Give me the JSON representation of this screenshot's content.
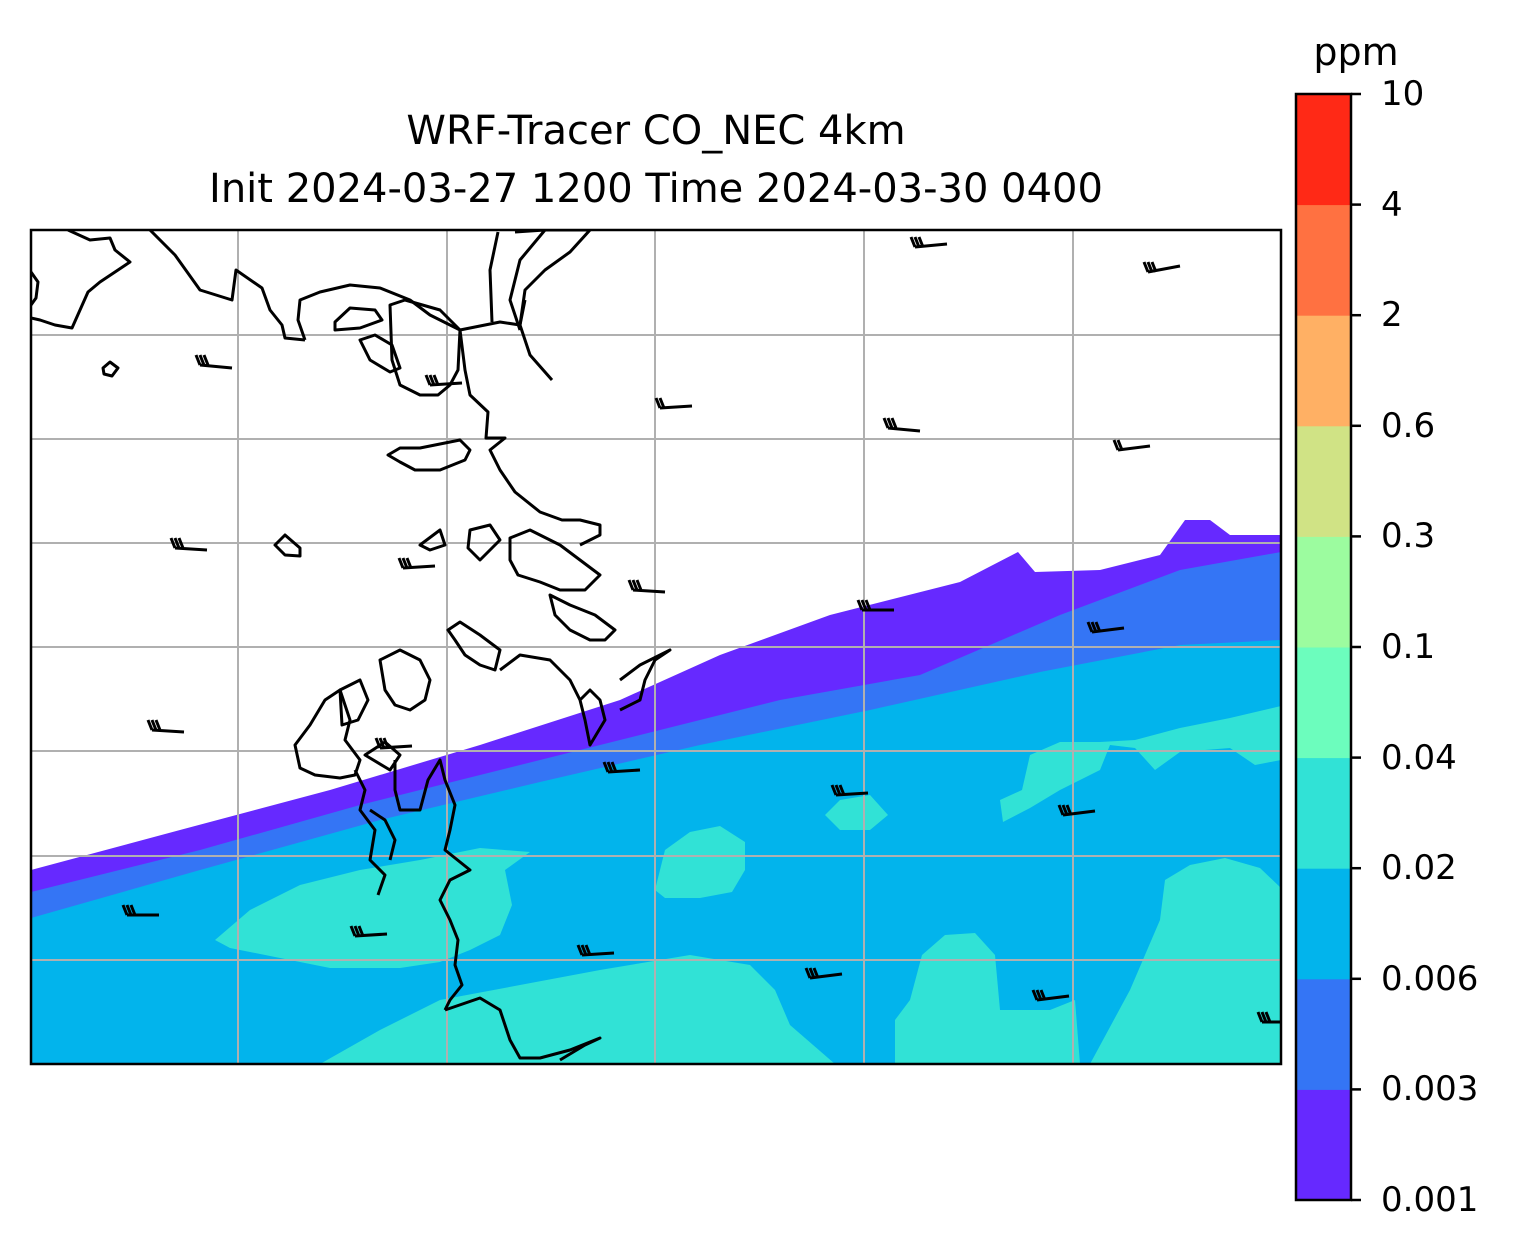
{
  "title": {
    "line1": "WRF-Tracer CO_NEC 4km",
    "line2": "Init 2024-03-27 1200 Time 2024-03-30 0400"
  },
  "colorbar": {
    "unit": "ppm",
    "levels": [
      "0.001",
      "0.003",
      "0.006",
      "0.02",
      "0.04",
      "0.1",
      "0.3",
      "0.6",
      "2",
      "4",
      "10"
    ],
    "colors": [
      "#6629ff",
      "#3475f5",
      "#02b4ec",
      "#31e2d6",
      "#6cfdbd",
      "#9cfc9f",
      "#d0e385",
      "#ffb064",
      "#ff7141",
      "#ff2916"
    ]
  },
  "map": {
    "background": "#ffffff",
    "gridlines": true,
    "grid_color": "#b0b0b0",
    "coastline_color": "#000000",
    "wind_barbs": "black"
  }
}
